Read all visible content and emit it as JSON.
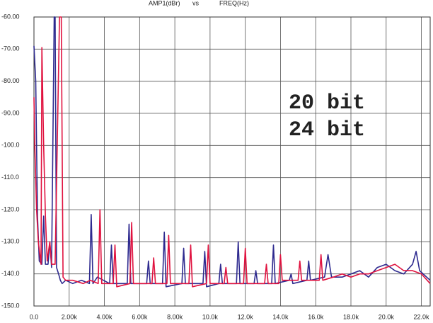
{
  "chart_data": {
    "type": "line",
    "title_parts": [
      "AMP1(dBr)",
      "vs",
      "FREQ(Hz)"
    ],
    "xlim": [
      0,
      22500
    ],
    "ylim": [
      -150,
      -60
    ],
    "grid": true,
    "xticks": [
      {
        "value": 0,
        "label": "0.0"
      },
      {
        "value": 2000,
        "label": "2.00k"
      },
      {
        "value": 4000,
        "label": "4.00k"
      },
      {
        "value": 6000,
        "label": "6.00k"
      },
      {
        "value": 8000,
        "label": "8.00k"
      },
      {
        "value": 10000,
        "label": "10.0k"
      },
      {
        "value": 12000,
        "label": "12.0k"
      },
      {
        "value": 14000,
        "label": "14.0k"
      },
      {
        "value": 16000,
        "label": "16.0k"
      },
      {
        "value": 18000,
        "label": "18.0k"
      },
      {
        "value": 20000,
        "label": "20.0k"
      },
      {
        "value": 22000,
        "label": "22.0k"
      }
    ],
    "yticks": [
      {
        "value": -60,
        "label": "-60.00"
      },
      {
        "value": -70,
        "label": "-70.00"
      },
      {
        "value": -80,
        "label": "-80.00"
      },
      {
        "value": -90,
        "label": "-90.00"
      },
      {
        "value": -100,
        "label": "-100.0"
      },
      {
        "value": -110,
        "label": "-110.0"
      },
      {
        "value": -120,
        "label": "-120.0"
      },
      {
        "value": -130,
        "label": "-130.0"
      },
      {
        "value": -140,
        "label": "-140.0"
      },
      {
        "value": -150,
        "label": "-150.0"
      }
    ],
    "series": [
      {
        "name": "20 bit",
        "color": "#2e2a8f",
        "x": [
          0,
          100,
          200,
          300,
          450,
          550,
          650,
          800,
          900,
          1000,
          1150,
          1200,
          1280,
          1400,
          1500,
          1600,
          1800,
          2200,
          2700,
          3150,
          3250,
          3350,
          3600,
          4300,
          4400,
          4500,
          5300,
          5400,
          5500,
          6400,
          6500,
          6600,
          7300,
          7400,
          7500,
          8400,
          8500,
          8600,
          9600,
          9700,
          9800,
          10500,
          10600,
          10700,
          11500,
          11600,
          11700,
          12500,
          12600,
          12700,
          13500,
          13600,
          13700,
          14500,
          14600,
          14700,
          15500,
          15600,
          15700,
          16500,
          16700,
          16900,
          17500,
          18000,
          18500,
          19000,
          19500,
          20000,
          20500,
          21000,
          21500,
          21700,
          21900,
          22300,
          22500
        ],
        "values": [
          -69,
          -80,
          -122,
          -136,
          -137,
          -122,
          -137,
          -137,
          -130,
          -138,
          -60,
          -60,
          -138,
          -140,
          -142,
          -143,
          -142,
          -143,
          -142,
          -143,
          -121.5,
          -143,
          -141,
          -143,
          -131,
          -143,
          -143,
          -124.5,
          -143,
          -143,
          -136,
          -143,
          -143,
          -127,
          -144,
          -143,
          -132,
          -143,
          -143,
          -133,
          -144,
          -143,
          -137,
          -143,
          -143,
          -130,
          -143,
          -143,
          -139,
          -143,
          -143,
          -131,
          -143,
          -142,
          -140,
          -143,
          -142,
          -136,
          -142,
          -141,
          -134,
          -141,
          -141,
          -140,
          -139,
          -141,
          -138,
          -137,
          -139,
          -140,
          -137,
          -133,
          -139,
          -141,
          -142
        ]
      },
      {
        "name": "24 bit",
        "color": "#e0123f",
        "x": [
          0,
          50,
          150,
          250,
          400,
          450,
          550,
          650,
          750,
          900,
          1000,
          1200,
          1450,
          1550,
          1650,
          1800,
          2200,
          2800,
          3200,
          3650,
          3750,
          3850,
          4500,
          4600,
          4700,
          5450,
          5550,
          5650,
          6700,
          6800,
          6900,
          7550,
          7650,
          7750,
          8800,
          8900,
          9000,
          9800,
          9900,
          10000,
          10800,
          10900,
          11000,
          11900,
          12000,
          12100,
          13100,
          13200,
          13300,
          13900,
          14000,
          14100,
          15000,
          15100,
          15200,
          16200,
          16300,
          16400,
          17000,
          17500,
          18000,
          18500,
          19000,
          19500,
          20000,
          20500,
          21000,
          21500,
          22000,
          22500
        ],
        "values": [
          -85,
          -100,
          -120,
          -130,
          -137,
          -69.5,
          -100,
          -122,
          -136,
          -130,
          -137,
          -137,
          -60,
          -60,
          -141,
          -142,
          -142,
          -143,
          -142,
          -143,
          -120,
          -143,
          -143,
          -131,
          -144,
          -143,
          -124,
          -143,
          -143,
          -135,
          -143,
          -143,
          -128,
          -143,
          -143,
          -131,
          -144,
          -143,
          -131,
          -143,
          -143,
          -138,
          -143,
          -143,
          -132,
          -143,
          -143,
          -137,
          -143,
          -143,
          -134,
          -142,
          -142,
          -136,
          -142,
          -142,
          -134,
          -142,
          -141,
          -140,
          -141,
          -140,
          -140,
          -139,
          -138,
          -137,
          -139,
          -139,
          -140,
          -143
        ]
      }
    ]
  }
}
